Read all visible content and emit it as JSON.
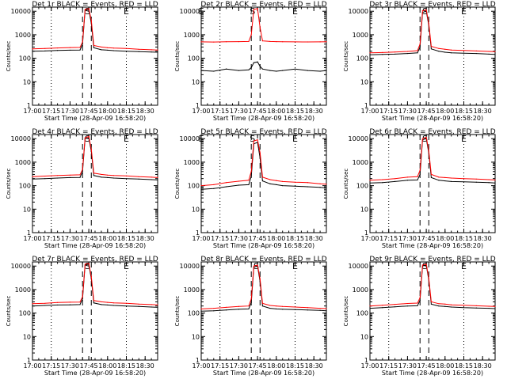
{
  "figure": {
    "background": "#ffffff",
    "colors": {
      "events": "#000000",
      "lld": "#ff0000",
      "axes": "#000000"
    }
  },
  "chart_data": [
    {
      "type": "line",
      "title": "Det 1r BLACK = Events, RED = LLD",
      "xlabel": "Start Time (28-Apr-09 16:58:20)",
      "ylabel": "Counts/sec",
      "yscale": "log",
      "xlim": [
        "17:00",
        "18:40"
      ],
      "ylim": [
        1,
        15000
      ],
      "xticks": [
        "17:00",
        "17:15",
        "17:30",
        "17:45",
        "18:00",
        "18:15",
        "18:30"
      ],
      "yticks": [
        "1",
        "10",
        "100",
        "1000",
        "10000"
      ],
      "vlines": [
        {
          "time": "17:15",
          "style": "dotted"
        },
        {
          "time": "17:40",
          "style": "dashed"
        },
        {
          "time": "17:47",
          "style": "dashed"
        },
        {
          "time": "18:15",
          "style": "dotted"
        }
      ],
      "markers": [
        {
          "label": "S",
          "time": "17:44"
        },
        {
          "label": "E",
          "time": "18:15"
        }
      ],
      "x": [
        "17:00",
        "17:10",
        "17:20",
        "17:30",
        "17:38",
        "17:40",
        "17:42",
        "17:45",
        "17:47",
        "17:49",
        "17:55",
        "18:00",
        "18:05",
        "18:15",
        "18:25",
        "18:35",
        "18:40"
      ],
      "series": [
        {
          "name": "Events",
          "color": "#000000",
          "values": [
            200,
            205,
            215,
            220,
            225,
            400,
            11000,
            12000,
            3000,
            280,
            230,
            220,
            210,
            200,
            190,
            185,
            180
          ]
        },
        {
          "name": "LLD",
          "color": "#ff0000",
          "values": [
            250,
            260,
            275,
            285,
            290,
            500,
            12000,
            13000,
            4000,
            350,
            300,
            280,
            270,
            260,
            240,
            230,
            225
          ]
        }
      ]
    },
    {
      "type": "line",
      "title": "Det 2r BLACK = Events, RED = LLD",
      "xlabel": "Start Time (28-Apr-09 16:58:20)",
      "ylabel": "Counts/sec",
      "yscale": "log",
      "xlim": [
        "17:00",
        "18:40"
      ],
      "ylim": [
        1,
        15000
      ],
      "xticks": [
        "17:00",
        "17:15",
        "17:30",
        "17:45",
        "18:00",
        "18:15",
        "18:30"
      ],
      "yticks": [
        "1",
        "10",
        "100",
        "1000",
        "10000"
      ],
      "vlines": [
        {
          "time": "17:15",
          "style": "dotted"
        },
        {
          "time": "17:40",
          "style": "dashed"
        },
        {
          "time": "17:47",
          "style": "dashed"
        },
        {
          "time": "18:15",
          "style": "dotted"
        }
      ],
      "markers": [
        {
          "label": "E",
          "time": "17:00"
        },
        {
          "label": "S",
          "time": "17:41"
        },
        {
          "label": "E",
          "time": "18:15"
        }
      ],
      "x": [
        "17:00",
        "17:10",
        "17:20",
        "17:30",
        "17:38",
        "17:40",
        "17:42",
        "17:45",
        "17:47",
        "17:49",
        "17:55",
        "18:00",
        "18:05",
        "18:15",
        "18:25",
        "18:35",
        "18:40"
      ],
      "series": [
        {
          "name": "Events",
          "color": "#000000",
          "values": [
            30,
            28,
            35,
            30,
            32,
            40,
            65,
            70,
            45,
            35,
            30,
            28,
            30,
            35,
            30,
            28,
            30
          ]
        },
        {
          "name": "LLD",
          "color": "#ff0000",
          "values": [
            500,
            490,
            505,
            510,
            520,
            1000,
            12000,
            13000,
            2000,
            550,
            520,
            510,
            505,
            500,
            495,
            500,
            505
          ]
        }
      ]
    },
    {
      "type": "line",
      "title": "Det 3r BLACK = Events, RED = LLD",
      "xlabel": "Start Time (28-Apr-09 16:58:20)",
      "ylabel": "Counts/sec",
      "yscale": "log",
      "xlim": [
        "17:00",
        "18:40"
      ],
      "ylim": [
        1,
        15000
      ],
      "xticks": [
        "17:00",
        "17:15",
        "17:30",
        "17:45",
        "18:00",
        "18:15",
        "18:30"
      ],
      "yticks": [
        "1",
        "10",
        "100",
        "1000",
        "10000"
      ],
      "vlines": [
        {
          "time": "17:15",
          "style": "dotted"
        },
        {
          "time": "17:40",
          "style": "dashed"
        },
        {
          "time": "17:47",
          "style": "dashed"
        },
        {
          "time": "18:15",
          "style": "dotted"
        }
      ],
      "markers": [
        {
          "label": "S",
          "time": "17:44"
        },
        {
          "label": "E",
          "time": "18:15"
        }
      ],
      "x": [
        "17:00",
        "17:10",
        "17:20",
        "17:30",
        "17:38",
        "17:40",
        "17:42",
        "17:45",
        "17:47",
        "17:49",
        "17:55",
        "18:00",
        "18:05",
        "18:15",
        "18:25",
        "18:35",
        "18:40"
      ],
      "series": [
        {
          "name": "Events",
          "color": "#000000",
          "values": [
            140,
            145,
            150,
            160,
            170,
            300,
            9000,
            10000,
            2500,
            250,
            200,
            180,
            170,
            165,
            160,
            150,
            145
          ]
        },
        {
          "name": "LLD",
          "color": "#ff0000",
          "values": [
            170,
            175,
            185,
            195,
            210,
            400,
            10500,
            11500,
            3000,
            320,
            260,
            240,
            225,
            215,
            205,
            195,
            190
          ]
        }
      ]
    },
    {
      "type": "line",
      "title": "Det 4r BLACK = Events, RED = LLD",
      "xlabel": "Start Time (28-Apr-09 16:58:20)",
      "ylabel": "Counts/sec",
      "yscale": "log",
      "xlim": [
        "17:00",
        "18:40"
      ],
      "ylim": [
        1,
        15000
      ],
      "xticks": [
        "17:00",
        "17:15",
        "17:30",
        "17:45",
        "18:00",
        "18:15",
        "18:30"
      ],
      "yticks": [
        "1",
        "10",
        "100",
        "1000",
        "10000"
      ],
      "vlines": [
        {
          "time": "17:15",
          "style": "dotted"
        },
        {
          "time": "17:40",
          "style": "dashed"
        },
        {
          "time": "17:47",
          "style": "dashed"
        },
        {
          "time": "18:15",
          "style": "dotted"
        }
      ],
      "markers": [
        {
          "label": "S",
          "time": "17:44"
        },
        {
          "label": "E",
          "time": "18:15"
        }
      ],
      "x": [
        "17:00",
        "17:10",
        "17:20",
        "17:30",
        "17:38",
        "17:40",
        "17:42",
        "17:45",
        "17:47",
        "17:49",
        "17:55",
        "18:00",
        "18:05",
        "18:15",
        "18:25",
        "18:35",
        "18:40"
      ],
      "series": [
        {
          "name": "Events",
          "color": "#000000",
          "values": [
            190,
            200,
            210,
            220,
            225,
            400,
            10000,
            11000,
            2800,
            270,
            230,
            220,
            210,
            200,
            190,
            180,
            175
          ]
        },
        {
          "name": "LLD",
          "color": "#ff0000",
          "values": [
            240,
            255,
            270,
            280,
            290,
            500,
            11000,
            12500,
            3500,
            340,
            300,
            280,
            270,
            260,
            240,
            230,
            220
          ]
        }
      ]
    },
    {
      "type": "line",
      "title": "Det 5r BLACK = Events, RED = LLD",
      "xlabel": "Start Time (28-Apr-09 16:58:20)",
      "ylabel": "Counts/sec",
      "yscale": "log",
      "xlim": [
        "17:00",
        "18:40"
      ],
      "ylim": [
        1,
        15000
      ],
      "xticks": [
        "17:00",
        "17:15",
        "17:30",
        "17:45",
        "18:00",
        "18:15",
        "18:30"
      ],
      "yticks": [
        "1",
        "10",
        "100",
        "1000",
        "10000"
      ],
      "vlines": [
        {
          "time": "17:15",
          "style": "dotted"
        },
        {
          "time": "17:40",
          "style": "dashed"
        },
        {
          "time": "17:47",
          "style": "dashed"
        },
        {
          "time": "18:15",
          "style": "dotted"
        }
      ],
      "markers": [
        {
          "label": "E",
          "time": "17:00"
        },
        {
          "label": "S",
          "time": "17:41"
        },
        {
          "label": "E",
          "time": "18:15"
        }
      ],
      "x": [
        "17:00",
        "17:10",
        "17:20",
        "17:30",
        "17:38",
        "17:40",
        "17:42",
        "17:45",
        "17:47",
        "17:49",
        "17:55",
        "18:00",
        "18:05",
        "18:15",
        "18:25",
        "18:35",
        "18:40"
      ],
      "series": [
        {
          "name": "Events",
          "color": "#000000",
          "values": [
            70,
            75,
            90,
            105,
            110,
            250,
            6000,
            7000,
            1500,
            160,
            120,
            110,
            100,
            95,
            90,
            85,
            80
          ]
        },
        {
          "name": "LLD",
          "color": "#ff0000",
          "values": [
            100,
            110,
            135,
            155,
            170,
            400,
            8000,
            9000,
            2500,
            230,
            180,
            165,
            150,
            140,
            135,
            120,
            115
          ]
        }
      ]
    },
    {
      "type": "line",
      "title": "Det 6r BLACK = Events, RED = LLD",
      "xlabel": "Start Time (28-Apr-09 16:58:20)",
      "ylabel": "Counts/sec",
      "yscale": "log",
      "xlim": [
        "17:00",
        "18:40"
      ],
      "ylim": [
        1,
        15000
      ],
      "xticks": [
        "17:00",
        "17:15",
        "17:30",
        "17:45",
        "18:00",
        "18:15",
        "18:30"
      ],
      "yticks": [
        "1",
        "10",
        "100",
        "1000",
        "10000"
      ],
      "vlines": [
        {
          "time": "17:15",
          "style": "dotted"
        },
        {
          "time": "17:40",
          "style": "dashed"
        },
        {
          "time": "17:47",
          "style": "dashed"
        },
        {
          "time": "18:15",
          "style": "dotted"
        }
      ],
      "markers": [
        {
          "label": "S",
          "time": "17:44"
        },
        {
          "label": "E",
          "time": "18:15"
        }
      ],
      "x": [
        "17:00",
        "17:10",
        "17:20",
        "17:30",
        "17:38",
        "17:40",
        "17:42",
        "17:45",
        "17:47",
        "17:49",
        "17:55",
        "18:00",
        "18:05",
        "18:15",
        "18:25",
        "18:35",
        "18:40"
      ],
      "series": [
        {
          "name": "Events",
          "color": "#000000",
          "values": [
            130,
            135,
            150,
            170,
            175,
            300,
            9000,
            10000,
            2400,
            220,
            170,
            160,
            150,
            145,
            140,
            135,
            130
          ]
        },
        {
          "name": "LLD",
          "color": "#ff0000",
          "values": [
            170,
            180,
            200,
            230,
            240,
            450,
            10000,
            11500,
            3000,
            300,
            230,
            220,
            210,
            200,
            190,
            180,
            175
          ]
        }
      ]
    },
    {
      "type": "line",
      "title": "Det 7r BLACK = Events, RED = LLD",
      "xlabel": "Start Time (28-Apr-09 16:58:20)",
      "ylabel": "Counts/sec",
      "yscale": "log",
      "xlim": [
        "17:00",
        "18:40"
      ],
      "ylim": [
        1,
        15000
      ],
      "xticks": [
        "17:00",
        "17:15",
        "17:30",
        "17:45",
        "18:00",
        "18:15",
        "18:30"
      ],
      "yticks": [
        "1",
        "10",
        "100",
        "1000",
        "10000"
      ],
      "vlines": [
        {
          "time": "17:15",
          "style": "dotted"
        },
        {
          "time": "17:40",
          "style": "dashed"
        },
        {
          "time": "17:47",
          "style": "dashed"
        },
        {
          "time": "18:15",
          "style": "dotted"
        }
      ],
      "markers": [
        {
          "label": "S",
          "time": "17:44"
        },
        {
          "label": "E",
          "time": "18:15"
        }
      ],
      "x": [
        "17:00",
        "17:10",
        "17:20",
        "17:30",
        "17:38",
        "17:40",
        "17:42",
        "17:45",
        "17:47",
        "17:49",
        "17:55",
        "18:00",
        "18:05",
        "18:15",
        "18:25",
        "18:35",
        "18:40"
      ],
      "series": [
        {
          "name": "Events",
          "color": "#000000",
          "values": [
            200,
            210,
            220,
            225,
            230,
            400,
            11000,
            12000,
            2800,
            270,
            230,
            220,
            210,
            200,
            190,
            180,
            175
          ]
        },
        {
          "name": "LLD",
          "color": "#ff0000",
          "values": [
            250,
            260,
            280,
            290,
            295,
            500,
            12000,
            13000,
            3500,
            340,
            300,
            285,
            270,
            260,
            240,
            230,
            225
          ]
        }
      ]
    },
    {
      "type": "line",
      "title": "Det 8r BLACK = Events, RED = LLD",
      "xlabel": "Start Time (28-Apr-09 16:58:20)",
      "ylabel": "Counts/sec",
      "yscale": "log",
      "xlim": [
        "17:00",
        "18:40"
      ],
      "ylim": [
        1,
        15000
      ],
      "xticks": [
        "17:00",
        "17:15",
        "17:30",
        "17:45",
        "18:00",
        "18:15",
        "18:30"
      ],
      "yticks": [
        "1",
        "10",
        "100",
        "1000",
        "10000"
      ],
      "vlines": [
        {
          "time": "17:15",
          "style": "dotted"
        },
        {
          "time": "17:40",
          "style": "dashed"
        },
        {
          "time": "17:47",
          "style": "dashed"
        },
        {
          "time": "18:15",
          "style": "dotted"
        }
      ],
      "markers": [
        {
          "label": "S",
          "time": "17:44"
        },
        {
          "label": "E",
          "time": "18:15"
        }
      ],
      "x": [
        "17:00",
        "17:10",
        "17:20",
        "17:30",
        "17:38",
        "17:40",
        "17:42",
        "17:45",
        "17:47",
        "17:49",
        "17:55",
        "18:00",
        "18:05",
        "18:15",
        "18:25",
        "18:35",
        "18:40"
      ],
      "series": [
        {
          "name": "Events",
          "color": "#000000",
          "values": [
            120,
            125,
            135,
            145,
            150,
            280,
            9000,
            10000,
            2200,
            200,
            160,
            150,
            145,
            140,
            135,
            130,
            125
          ]
        },
        {
          "name": "LLD",
          "color": "#ff0000",
          "values": [
            150,
            160,
            175,
            190,
            200,
            400,
            10000,
            11000,
            2800,
            260,
            210,
            200,
            190,
            180,
            170,
            160,
            155
          ]
        }
      ]
    },
    {
      "type": "line",
      "title": "Det 9r BLACK = Events, RED = LLD",
      "xlabel": "Start Time (28-Apr-09 16:58:20)",
      "ylabel": "Counts/sec",
      "yscale": "log",
      "xlim": [
        "17:00",
        "18:40"
      ],
      "ylim": [
        1,
        15000
      ],
      "xticks": [
        "17:00",
        "17:15",
        "17:30",
        "17:45",
        "18:00",
        "18:15",
        "18:30"
      ],
      "yticks": [
        "1",
        "10",
        "100",
        "1000",
        "10000"
      ],
      "vlines": [
        {
          "time": "17:15",
          "style": "dotted"
        },
        {
          "time": "17:40",
          "style": "dashed"
        },
        {
          "time": "17:47",
          "style": "dashed"
        },
        {
          "time": "18:15",
          "style": "dotted"
        }
      ],
      "markers": [
        {
          "label": "S",
          "time": "17:44"
        },
        {
          "label": "E",
          "time": "18:15"
        }
      ],
      "x": [
        "17:00",
        "17:10",
        "17:20",
        "17:30",
        "17:38",
        "17:40",
        "17:42",
        "17:45",
        "17:47",
        "17:49",
        "17:55",
        "18:00",
        "18:05",
        "18:15",
        "18:25",
        "18:35",
        "18:40"
      ],
      "series": [
        {
          "name": "Events",
          "color": "#000000",
          "values": [
            160,
            170,
            185,
            200,
            205,
            350,
            10000,
            11000,
            2500,
            240,
            200,
            190,
            180,
            170,
            165,
            160,
            155
          ]
        },
        {
          "name": "LLD",
          "color": "#ff0000",
          "values": [
            200,
            215,
            235,
            255,
            265,
            450,
            11000,
            12000,
            3000,
            300,
            250,
            240,
            225,
            215,
            205,
            195,
            190
          ]
        }
      ]
    }
  ]
}
